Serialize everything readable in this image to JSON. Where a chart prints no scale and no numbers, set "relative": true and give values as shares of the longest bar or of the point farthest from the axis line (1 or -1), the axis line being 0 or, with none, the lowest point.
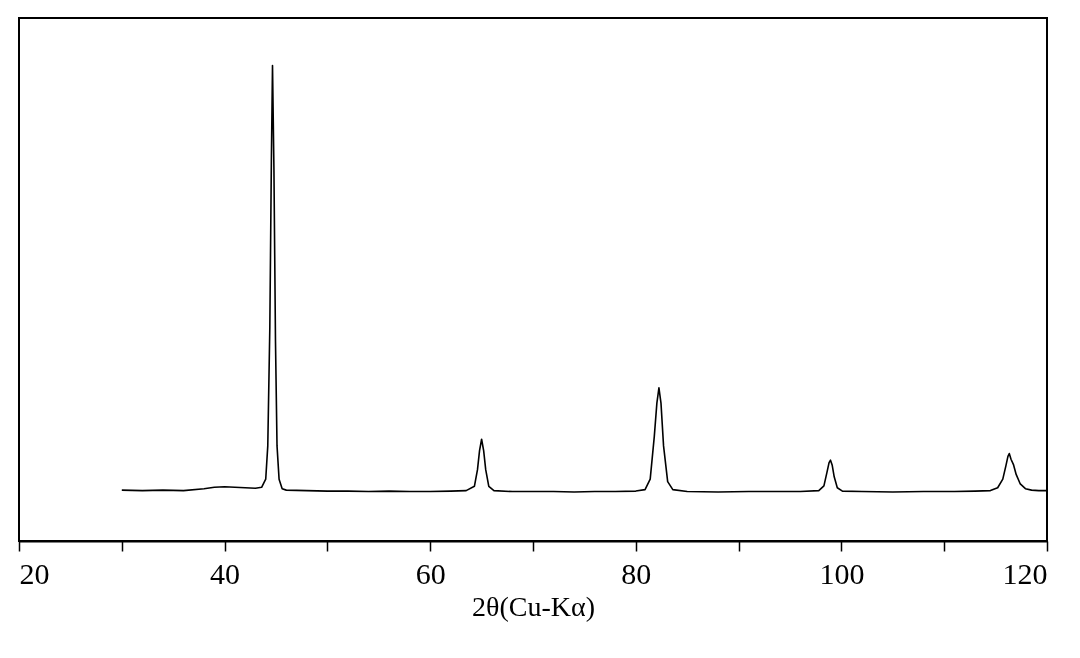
{
  "chart_data": {
    "type": "line",
    "relative": true,
    "xlabel": "2θ(Cu-Kα)",
    "xlim": [
      20,
      120
    ],
    "xticks": [
      20,
      {
        "value": 30,
        "label": null
      },
      40,
      {
        "value": 50,
        "label": null
      },
      60,
      {
        "value": 70,
        "label": null
      },
      80,
      {
        "value": 90,
        "label": null
      },
      100,
      {
        "value": 110,
        "label": null
      },
      120
    ],
    "grid": false,
    "legend": false,
    "marker": "none",
    "line_style": "solid",
    "series": [
      {
        "color": "#000000",
        "x": [
          30,
          32,
          34,
          36,
          38,
          39,
          40,
          41,
          42,
          43,
          43.6,
          44.0,
          44.2,
          44.4,
          44.55,
          44.66,
          44.8,
          44.95,
          45.1,
          45.3,
          45.6,
          46,
          48,
          50,
          52,
          54,
          56,
          58,
          60,
          62,
          63.5,
          64.3,
          64.6,
          64.8,
          65.0,
          65.2,
          65.4,
          65.7,
          66.2,
          68,
          70,
          72,
          74,
          76,
          78,
          80,
          80.9,
          81.4,
          81.8,
          82.05,
          82.25,
          82.45,
          82.7,
          83.1,
          83.6,
          85,
          88,
          91,
          94,
          96,
          97.8,
          98.3,
          98.6,
          98.8,
          98.94,
          99.1,
          99.3,
          99.6,
          100.1,
          102,
          105,
          108,
          111,
          113,
          114.5,
          115.2,
          115.7,
          116.0,
          116.2,
          116.33,
          116.5,
          116.75,
          117.0,
          117.4,
          117.9,
          118.5,
          119.2,
          120
        ],
        "values": [
          0.107,
          0.106,
          0.107,
          0.106,
          0.11,
          0.113,
          0.114,
          0.113,
          0.112,
          0.111,
          0.113,
          0.13,
          0.2,
          0.45,
          0.8,
          1.0,
          0.78,
          0.42,
          0.2,
          0.13,
          0.11,
          0.107,
          0.106,
          0.105,
          0.105,
          0.104,
          0.105,
          0.104,
          0.104,
          0.105,
          0.106,
          0.115,
          0.15,
          0.19,
          0.214,
          0.19,
          0.15,
          0.115,
          0.106,
          0.104,
          0.104,
          0.104,
          0.103,
          0.104,
          0.104,
          0.105,
          0.108,
          0.13,
          0.22,
          0.29,
          0.322,
          0.29,
          0.2,
          0.125,
          0.108,
          0.104,
          0.103,
          0.104,
          0.104,
          0.104,
          0.106,
          0.116,
          0.145,
          0.165,
          0.17,
          0.16,
          0.135,
          0.112,
          0.105,
          0.104,
          0.103,
          0.104,
          0.104,
          0.105,
          0.106,
          0.112,
          0.13,
          0.158,
          0.178,
          0.184,
          0.172,
          0.16,
          0.14,
          0.12,
          0.11,
          0.107,
          0.106,
          0.106
        ]
      }
    ]
  }
}
